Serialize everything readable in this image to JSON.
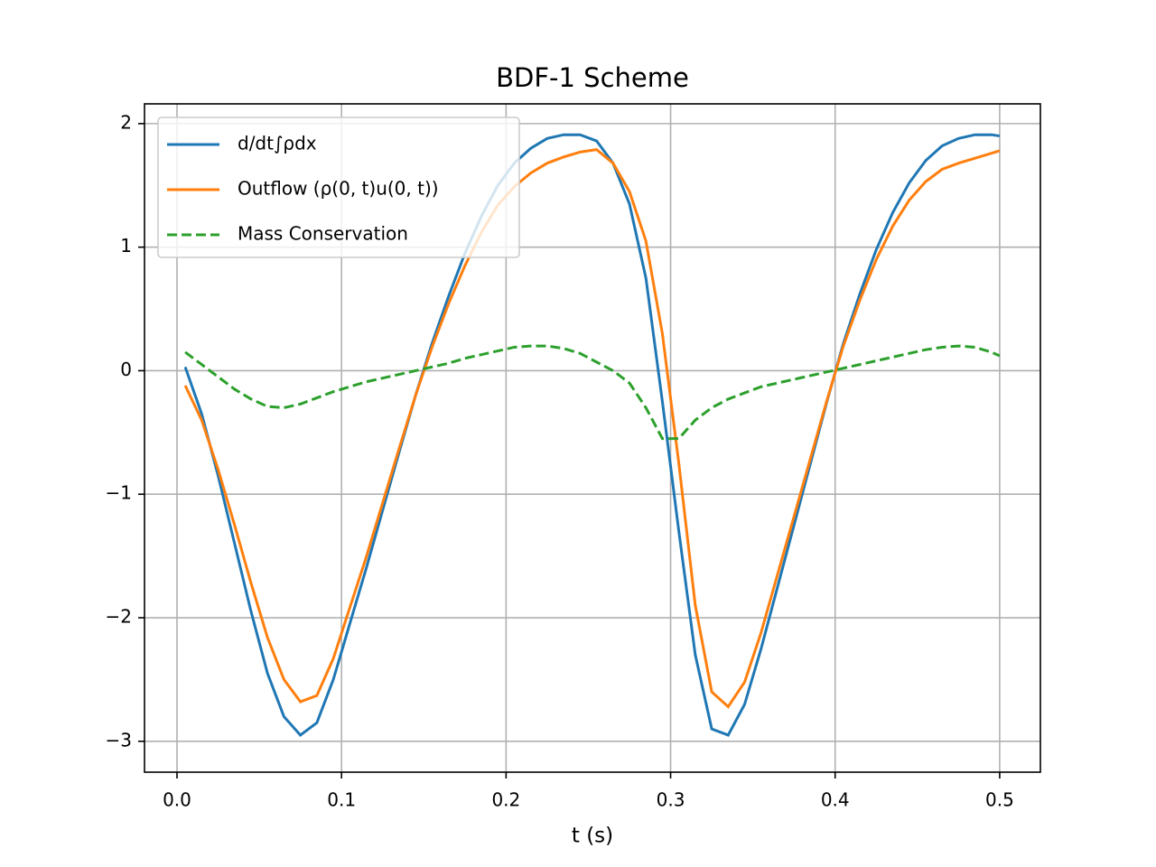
{
  "chart_data": {
    "type": "line",
    "title": "BDF-1 Scheme",
    "x_label": "t (s)",
    "x": [
      0.005,
      0.015,
      0.025,
      0.035,
      0.045,
      0.055,
      0.065,
      0.075,
      0.085,
      0.095,
      0.105,
      0.115,
      0.125,
      0.135,
      0.145,
      0.155,
      0.165,
      0.175,
      0.185,
      0.195,
      0.205,
      0.215,
      0.225,
      0.235,
      0.245,
      0.255,
      0.265,
      0.275,
      0.285,
      0.295,
      0.305,
      0.315,
      0.325,
      0.335,
      0.345,
      0.355,
      0.365,
      0.375,
      0.385,
      0.395,
      0.405,
      0.415,
      0.425,
      0.435,
      0.445,
      0.455,
      0.465,
      0.475,
      0.485,
      0.495,
      0.5
    ],
    "series": [
      {
        "name": "d/dt∫ρdx",
        "color": "#1f77b4",
        "linestyle": "solid",
        "values": [
          0.03,
          -0.35,
          -0.85,
          -1.4,
          -1.95,
          -2.45,
          -2.8,
          -2.95,
          -2.85,
          -2.5,
          -2.05,
          -1.6,
          -1.13,
          -0.66,
          -0.2,
          0.22,
          0.6,
          0.95,
          1.25,
          1.5,
          1.68,
          1.8,
          1.88,
          1.91,
          1.91,
          1.86,
          1.68,
          1.35,
          0.75,
          -0.25,
          -1.3,
          -2.3,
          -2.9,
          -2.95,
          -2.7,
          -2.25,
          -1.75,
          -1.25,
          -0.75,
          -0.25,
          0.22,
          0.62,
          0.98,
          1.28,
          1.52,
          1.7,
          1.82,
          1.88,
          1.91,
          1.91,
          1.9
        ]
      },
      {
        "name": "Outflow (ρ(0, t)u(0, t))",
        "color": "#ff7f0e",
        "linestyle": "solid",
        "values": [
          -0.12,
          -0.4,
          -0.8,
          -1.25,
          -1.72,
          -2.16,
          -2.5,
          -2.68,
          -2.63,
          -2.33,
          -1.92,
          -1.51,
          -1.07,
          -0.63,
          -0.2,
          0.19,
          0.54,
          0.85,
          1.12,
          1.34,
          1.49,
          1.6,
          1.68,
          1.73,
          1.77,
          1.79,
          1.68,
          1.45,
          1.05,
          0.3,
          -0.75,
          -1.9,
          -2.6,
          -2.72,
          -2.52,
          -2.12,
          -1.65,
          -1.18,
          -0.71,
          -0.24,
          0.2,
          0.57,
          0.9,
          1.17,
          1.38,
          1.53,
          1.63,
          1.68,
          1.72,
          1.76,
          1.78
        ]
      },
      {
        "name": "Mass Conservation",
        "color": "#2ca02c",
        "linestyle": "dashed",
        "values": [
          0.15,
          0.05,
          -0.05,
          -0.15,
          -0.23,
          -0.29,
          -0.3,
          -0.27,
          -0.22,
          -0.17,
          -0.13,
          -0.09,
          -0.06,
          -0.03,
          0.0,
          0.03,
          0.06,
          0.1,
          0.13,
          0.16,
          0.19,
          0.2,
          0.2,
          0.18,
          0.14,
          0.07,
          0.0,
          -0.1,
          -0.3,
          -0.55,
          -0.55,
          -0.4,
          -0.3,
          -0.23,
          -0.18,
          -0.13,
          -0.1,
          -0.07,
          -0.04,
          -0.01,
          0.02,
          0.05,
          0.08,
          0.11,
          0.14,
          0.17,
          0.19,
          0.2,
          0.19,
          0.15,
          0.12
        ]
      }
    ],
    "xlim": [
      -0.01975,
      0.52475
    ],
    "ylim": [
      -3.25,
      2.16
    ],
    "xticks": [
      {
        "value": 0,
        "label": "0.0"
      },
      0.1,
      0.2,
      0.3,
      0.4,
      0.5
    ],
    "yticks": [
      {
        "value": -3,
        "label": "−3"
      },
      {
        "value": -2,
        "label": "−2"
      },
      {
        "value": -1,
        "label": "−1"
      },
      0,
      1,
      2
    ],
    "grid": true,
    "legend": "upper left"
  }
}
